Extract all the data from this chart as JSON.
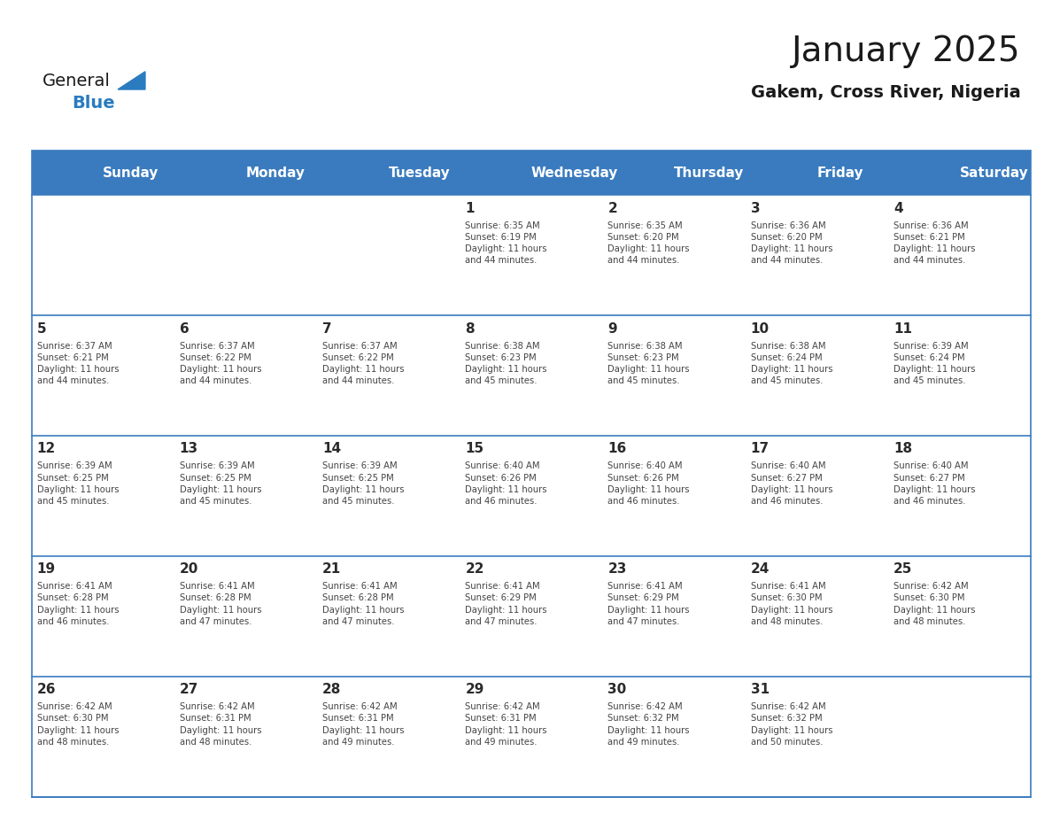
{
  "title": "January 2025",
  "subtitle": "Gakem, Cross River, Nigeria",
  "days_of_week": [
    "Sunday",
    "Monday",
    "Tuesday",
    "Wednesday",
    "Thursday",
    "Friday",
    "Saturday"
  ],
  "header_bg": "#3a7bbf",
  "header_text": "#ffffff",
  "cell_bg": "#ffffff",
  "alt_row_bg": "#f0f4f8",
  "border_color": "#3a7bbf",
  "day_number_color": "#2a2a2a",
  "cell_text_color": "#444444",
  "title_color": "#1a1a1a",
  "subtitle_color": "#1a1a1a",
  "generalblue_text_color": "#1a1a1a",
  "generalblue_blue_color": "#2a7bbf",
  "calendar": [
    [
      {
        "day": "",
        "info": ""
      },
      {
        "day": "",
        "info": ""
      },
      {
        "day": "",
        "info": ""
      },
      {
        "day": "1",
        "info": "Sunrise: 6:35 AM\nSunset: 6:19 PM\nDaylight: 11 hours\nand 44 minutes."
      },
      {
        "day": "2",
        "info": "Sunrise: 6:35 AM\nSunset: 6:20 PM\nDaylight: 11 hours\nand 44 minutes."
      },
      {
        "day": "3",
        "info": "Sunrise: 6:36 AM\nSunset: 6:20 PM\nDaylight: 11 hours\nand 44 minutes."
      },
      {
        "day": "4",
        "info": "Sunrise: 6:36 AM\nSunset: 6:21 PM\nDaylight: 11 hours\nand 44 minutes."
      }
    ],
    [
      {
        "day": "5",
        "info": "Sunrise: 6:37 AM\nSunset: 6:21 PM\nDaylight: 11 hours\nand 44 minutes."
      },
      {
        "day": "6",
        "info": "Sunrise: 6:37 AM\nSunset: 6:22 PM\nDaylight: 11 hours\nand 44 minutes."
      },
      {
        "day": "7",
        "info": "Sunrise: 6:37 AM\nSunset: 6:22 PM\nDaylight: 11 hours\nand 44 minutes."
      },
      {
        "day": "8",
        "info": "Sunrise: 6:38 AM\nSunset: 6:23 PM\nDaylight: 11 hours\nand 45 minutes."
      },
      {
        "day": "9",
        "info": "Sunrise: 6:38 AM\nSunset: 6:23 PM\nDaylight: 11 hours\nand 45 minutes."
      },
      {
        "day": "10",
        "info": "Sunrise: 6:38 AM\nSunset: 6:24 PM\nDaylight: 11 hours\nand 45 minutes."
      },
      {
        "day": "11",
        "info": "Sunrise: 6:39 AM\nSunset: 6:24 PM\nDaylight: 11 hours\nand 45 minutes."
      }
    ],
    [
      {
        "day": "12",
        "info": "Sunrise: 6:39 AM\nSunset: 6:25 PM\nDaylight: 11 hours\nand 45 minutes."
      },
      {
        "day": "13",
        "info": "Sunrise: 6:39 AM\nSunset: 6:25 PM\nDaylight: 11 hours\nand 45 minutes."
      },
      {
        "day": "14",
        "info": "Sunrise: 6:39 AM\nSunset: 6:25 PM\nDaylight: 11 hours\nand 45 minutes."
      },
      {
        "day": "15",
        "info": "Sunrise: 6:40 AM\nSunset: 6:26 PM\nDaylight: 11 hours\nand 46 minutes."
      },
      {
        "day": "16",
        "info": "Sunrise: 6:40 AM\nSunset: 6:26 PM\nDaylight: 11 hours\nand 46 minutes."
      },
      {
        "day": "17",
        "info": "Sunrise: 6:40 AM\nSunset: 6:27 PM\nDaylight: 11 hours\nand 46 minutes."
      },
      {
        "day": "18",
        "info": "Sunrise: 6:40 AM\nSunset: 6:27 PM\nDaylight: 11 hours\nand 46 minutes."
      }
    ],
    [
      {
        "day": "19",
        "info": "Sunrise: 6:41 AM\nSunset: 6:28 PM\nDaylight: 11 hours\nand 46 minutes."
      },
      {
        "day": "20",
        "info": "Sunrise: 6:41 AM\nSunset: 6:28 PM\nDaylight: 11 hours\nand 47 minutes."
      },
      {
        "day": "21",
        "info": "Sunrise: 6:41 AM\nSunset: 6:28 PM\nDaylight: 11 hours\nand 47 minutes."
      },
      {
        "day": "22",
        "info": "Sunrise: 6:41 AM\nSunset: 6:29 PM\nDaylight: 11 hours\nand 47 minutes."
      },
      {
        "day": "23",
        "info": "Sunrise: 6:41 AM\nSunset: 6:29 PM\nDaylight: 11 hours\nand 47 minutes."
      },
      {
        "day": "24",
        "info": "Sunrise: 6:41 AM\nSunset: 6:30 PM\nDaylight: 11 hours\nand 48 minutes."
      },
      {
        "day": "25",
        "info": "Sunrise: 6:42 AM\nSunset: 6:30 PM\nDaylight: 11 hours\nand 48 minutes."
      }
    ],
    [
      {
        "day": "26",
        "info": "Sunrise: 6:42 AM\nSunset: 6:30 PM\nDaylight: 11 hours\nand 48 minutes."
      },
      {
        "day": "27",
        "info": "Sunrise: 6:42 AM\nSunset: 6:31 PM\nDaylight: 11 hours\nand 48 minutes."
      },
      {
        "day": "28",
        "info": "Sunrise: 6:42 AM\nSunset: 6:31 PM\nDaylight: 11 hours\nand 49 minutes."
      },
      {
        "day": "29",
        "info": "Sunrise: 6:42 AM\nSunset: 6:31 PM\nDaylight: 11 hours\nand 49 minutes."
      },
      {
        "day": "30",
        "info": "Sunrise: 6:42 AM\nSunset: 6:32 PM\nDaylight: 11 hours\nand 49 minutes."
      },
      {
        "day": "31",
        "info": "Sunrise: 6:42 AM\nSunset: 6:32 PM\nDaylight: 11 hours\nand 50 minutes."
      },
      {
        "day": "",
        "info": ""
      }
    ]
  ]
}
